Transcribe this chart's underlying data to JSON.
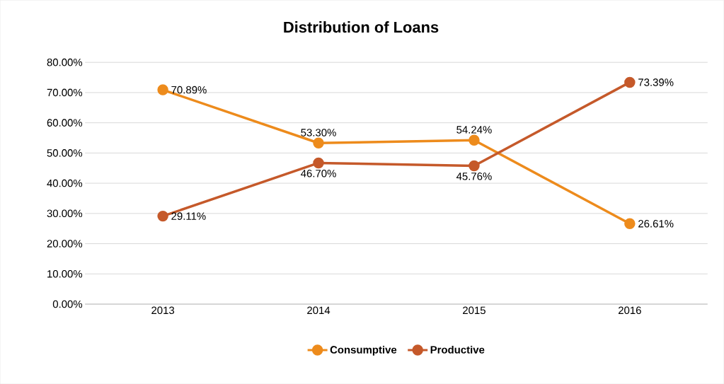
{
  "chart_data": {
    "type": "line",
    "title": "Distribution of Loans",
    "categories": [
      "2013",
      "2014",
      "2015",
      "2016"
    ],
    "series": [
      {
        "name": "Consumptive",
        "color": "#ed8b1c",
        "values": [
          70.89,
          53.3,
          54.24,
          26.61
        ],
        "value_labels": [
          "70.89%",
          "53.30%",
          "54.24%",
          "26.61%"
        ]
      },
      {
        "name": "Productive",
        "color": "#c5592a",
        "values": [
          29.11,
          46.7,
          45.76,
          73.39
        ],
        "value_labels": [
          "29.11%",
          "46.70%",
          "45.76%",
          "73.39%"
        ]
      }
    ],
    "ylim": [
      0,
      80
    ],
    "yticks": [
      {
        "value": 0,
        "label": "0.00%"
      },
      {
        "value": 10,
        "label": "10.00%"
      },
      {
        "value": 20,
        "label": "20.00%"
      },
      {
        "value": 30,
        "label": "30.00%"
      },
      {
        "value": 40,
        "label": "40.00%"
      },
      {
        "value": 50,
        "label": "50.00%"
      },
      {
        "value": 60,
        "label": "60.00%"
      },
      {
        "value": 70,
        "label": "70.00%"
      },
      {
        "value": 80,
        "label": "80.00%"
      }
    ],
    "grid": "y",
    "legend": "bottom",
    "marker": "circle",
    "line_style": "solid"
  }
}
